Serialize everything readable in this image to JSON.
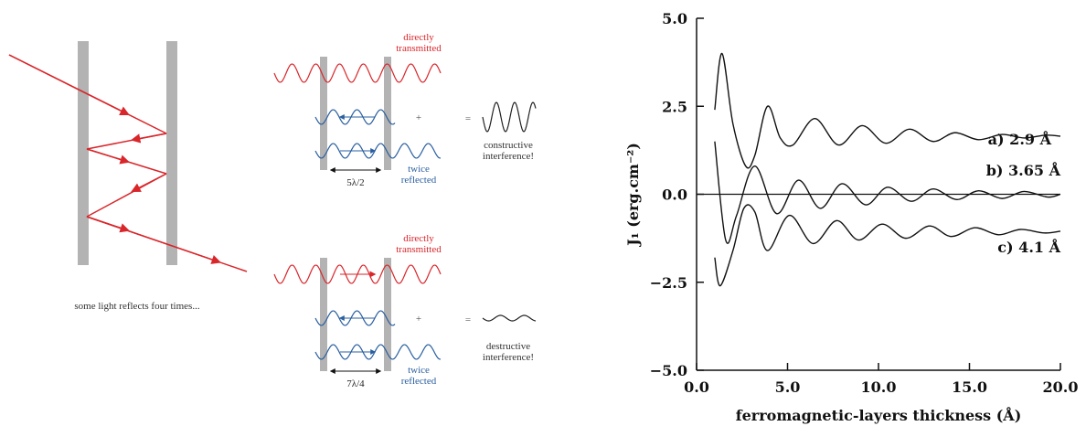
{
  "diagram": {
    "caption": "some light reflects four times...",
    "top": {
      "transmitted": [
        "directly",
        "transmitted"
      ],
      "plus": "+",
      "equals": "=",
      "result": [
        "constructive",
        "interference!"
      ],
      "reflected": [
        "twice",
        "reflected"
      ],
      "spacing": "5λ/2"
    },
    "bottom": {
      "transmitted": [
        "directly",
        "transmitted"
      ],
      "plus": "+",
      "equals": "=",
      "result": [
        "destructive",
        "interference!"
      ],
      "reflected": [
        "twice",
        "reflected"
      ],
      "spacing": "7λ/4"
    }
  },
  "chart_data": {
    "type": "line",
    "x_label": "ferromagnetic-layers thickness (Å)",
    "y_label": "J₁ (erg.cm⁻²)",
    "xlim": [
      0,
      20
    ],
    "ylim": [
      -5,
      5
    ],
    "xticks": [
      {
        "value": 0,
        "label": "0.0"
      },
      {
        "value": 5,
        "label": "5.0"
      },
      {
        "value": 10,
        "label": "10.0"
      },
      {
        "value": 15,
        "label": "15.0"
      },
      {
        "value": 20,
        "label": "20.0"
      }
    ],
    "yticks": [
      {
        "value": -5,
        "label": "−5.0"
      },
      {
        "value": -2.5,
        "label": "−2.5"
      },
      {
        "value": 0,
        "label": "0.0"
      },
      {
        "value": 2.5,
        "label": "2.5"
      },
      {
        "value": 5,
        "label": "5.0"
      }
    ],
    "reference_line": 0,
    "series": [
      {
        "name": "a) 2.9 Å",
        "color": "#111111",
        "x": [
          1.0,
          1.4,
          2.0,
          2.7,
          3.2,
          3.9,
          4.6,
          5.3,
          6.5,
          7.8,
          9.1,
          10.4,
          11.7,
          13.0,
          14.2,
          15.5,
          16.8,
          18.0,
          19.2,
          20.0
        ],
        "values": [
          2.4,
          4.0,
          2.0,
          0.8,
          1.1,
          2.5,
          1.6,
          1.4,
          2.15,
          1.4,
          1.95,
          1.45,
          1.85,
          1.5,
          1.75,
          1.55,
          1.7,
          1.6,
          1.68,
          1.65
        ]
      },
      {
        "name": "b) 3.65 Å",
        "color": "#111111",
        "x": [
          1.0,
          1.6,
          2.2,
          3.2,
          4.4,
          5.6,
          6.8,
          8.0,
          9.3,
          10.5,
          11.8,
          13.0,
          14.3,
          15.5,
          16.8,
          18.0,
          19.3,
          20.0
        ],
        "values": [
          1.5,
          -1.3,
          -0.6,
          0.8,
          -0.55,
          0.4,
          -0.4,
          0.3,
          -0.3,
          0.2,
          -0.2,
          0.15,
          -0.15,
          0.1,
          -0.12,
          0.08,
          -0.08,
          0.0
        ]
      },
      {
        "name": "c) 4.1 Å",
        "color": "#111111",
        "x": [
          1.0,
          1.3,
          2.0,
          2.6,
          3.2,
          3.9,
          5.1,
          6.4,
          7.7,
          8.9,
          10.2,
          11.5,
          12.8,
          14.0,
          15.3,
          16.6,
          17.8,
          19.1,
          20.0
        ],
        "values": [
          -1.8,
          -2.6,
          -1.6,
          -0.4,
          -0.5,
          -1.6,
          -0.6,
          -1.4,
          -0.75,
          -1.3,
          -0.85,
          -1.25,
          -0.9,
          -1.2,
          -0.95,
          -1.15,
          -1.0,
          -1.1,
          -1.05
        ]
      }
    ]
  }
}
